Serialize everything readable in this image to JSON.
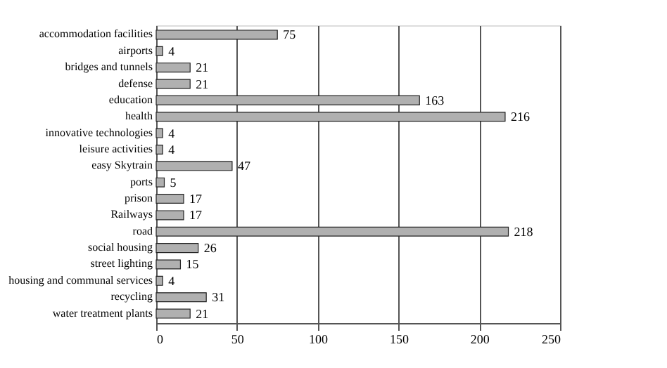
{
  "chart_data": {
    "type": "bar",
    "orientation": "horizontal",
    "categories": [
      "accommodation facilities",
      "airports",
      "bridges and tunnels",
      "defense",
      "education",
      "health",
      "innovative technologies",
      "leisure activities",
      "easy Skytrain",
      "ports",
      "prison",
      "Railways",
      "road",
      "social housing",
      "street lighting",
      "housing and communal services",
      "recycling",
      "water treatment plants"
    ],
    "values": [
      75,
      4,
      21,
      21,
      163,
      216,
      4,
      4,
      47,
      5,
      17,
      17,
      218,
      26,
      15,
      4,
      31,
      21
    ],
    "color": "#b0b0b0",
    "xlim": [
      0,
      250
    ],
    "xticks": [
      0,
      50,
      100,
      150,
      200,
      250
    ],
    "grid": "x",
    "data_labels": true
  }
}
